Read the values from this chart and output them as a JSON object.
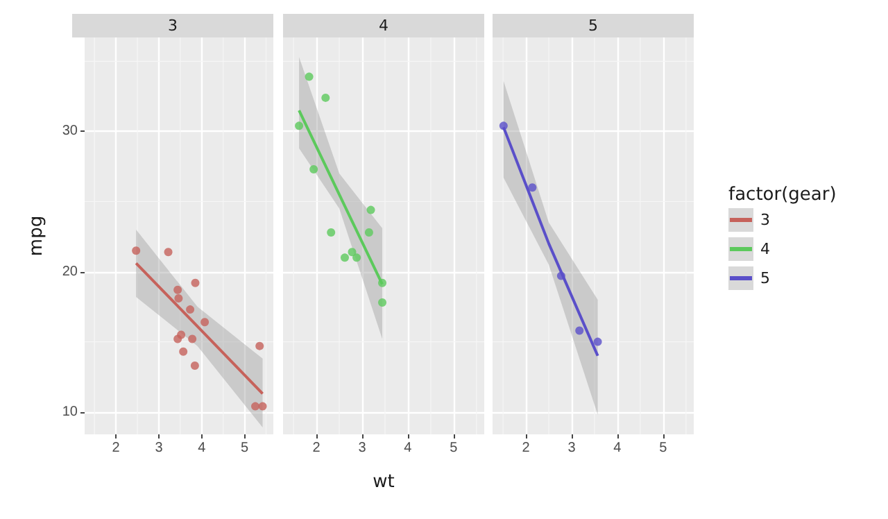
{
  "chart_data": [
    {
      "type": "scatter",
      "title": "3",
      "ylabel": "mpg",
      "xlim": [
        1.27,
        5.67
      ],
      "xticks": [
        2,
        3,
        4,
        5
      ],
      "ylim": [
        8.4,
        36.7
      ],
      "yticks": [
        10,
        20,
        30
      ],
      "grid": true,
      "marker": "circle",
      "series": [
        {
          "name": "3",
          "color": "#c6625b",
          "x": [
            2.47,
            3.22,
            3.44,
            3.46,
            3.57,
            4.07,
            3.73,
            3.78,
            5.25,
            5.42,
            5.35,
            3.52,
            3.44,
            3.84,
            3.85
          ],
          "values": [
            21.5,
            21.4,
            18.7,
            18.1,
            14.3,
            16.4,
            17.3,
            15.2,
            10.4,
            10.4,
            14.7,
            15.5,
            15.2,
            13.3,
            19.2
          ]
        },
        {
          "type": "line",
          "marker": "none",
          "color": "#c6625b",
          "x": [
            2.47,
            3.9,
            5.42
          ],
          "values": [
            20.6,
            16.1,
            11.3
          ],
          "lower": [
            18.2,
            14.7,
            8.9
          ],
          "upper": [
            23.0,
            17.5,
            13.8
          ]
        }
      ]
    },
    {
      "type": "scatter",
      "title": "4",
      "xlabel": "wt",
      "xlim": [
        1.27,
        5.67
      ],
      "xticks": [
        2,
        3,
        4,
        5
      ],
      "ylim": [
        8.4,
        36.7
      ],
      "yticks": [
        10,
        20,
        30
      ],
      "grid": true,
      "marker": "circle",
      "tick_labels": "x",
      "series": [
        {
          "name": "4",
          "color": "#5cc95c",
          "x": [
            2.62,
            2.88,
            2.32,
            3.19,
            3.15,
            3.44,
            3.44,
            2.2,
            1.62,
            1.84,
            1.94,
            2.78
          ],
          "values": [
            21.0,
            21.0,
            22.8,
            24.4,
            22.8,
            19.2,
            17.8,
            32.4,
            30.4,
            33.9,
            27.3,
            21.4
          ]
        },
        {
          "type": "line",
          "marker": "none",
          "color": "#5cc95c",
          "x": [
            1.62,
            2.5,
            3.44
          ],
          "values": [
            31.5,
            25.5,
            19.1
          ],
          "lower": [
            28.8,
            24.5,
            15.2
          ],
          "upper": [
            35.3,
            27.0,
            23.1
          ]
        }
      ]
    },
    {
      "type": "scatter",
      "title": "5",
      "legend": "right",
      "legend_title": "factor(gear)",
      "xlim": [
        1.27,
        5.67
      ],
      "xticks": [
        2,
        3,
        4,
        5
      ],
      "ylim": [
        8.4,
        36.7
      ],
      "yticks": [
        10,
        20,
        30
      ],
      "grid": true,
      "marker": "circle",
      "tick_labels": "x",
      "series": [
        {
          "name": "5",
          "color": "#5a4fc9",
          "x": [
            2.14,
            1.51,
            3.17,
            2.77,
            3.57
          ],
          "values": [
            26.0,
            30.4,
            15.8,
            19.7,
            15.0
          ]
        },
        {
          "type": "line",
          "marker": "none",
          "color": "#5a4fc9",
          "x": [
            1.51,
            2.5,
            3.57
          ],
          "values": [
            30.3,
            22.0,
            14.0
          ],
          "lower": [
            26.7,
            20.5,
            9.8
          ],
          "upper": [
            33.6,
            23.5,
            18.0
          ]
        }
      ]
    }
  ]
}
